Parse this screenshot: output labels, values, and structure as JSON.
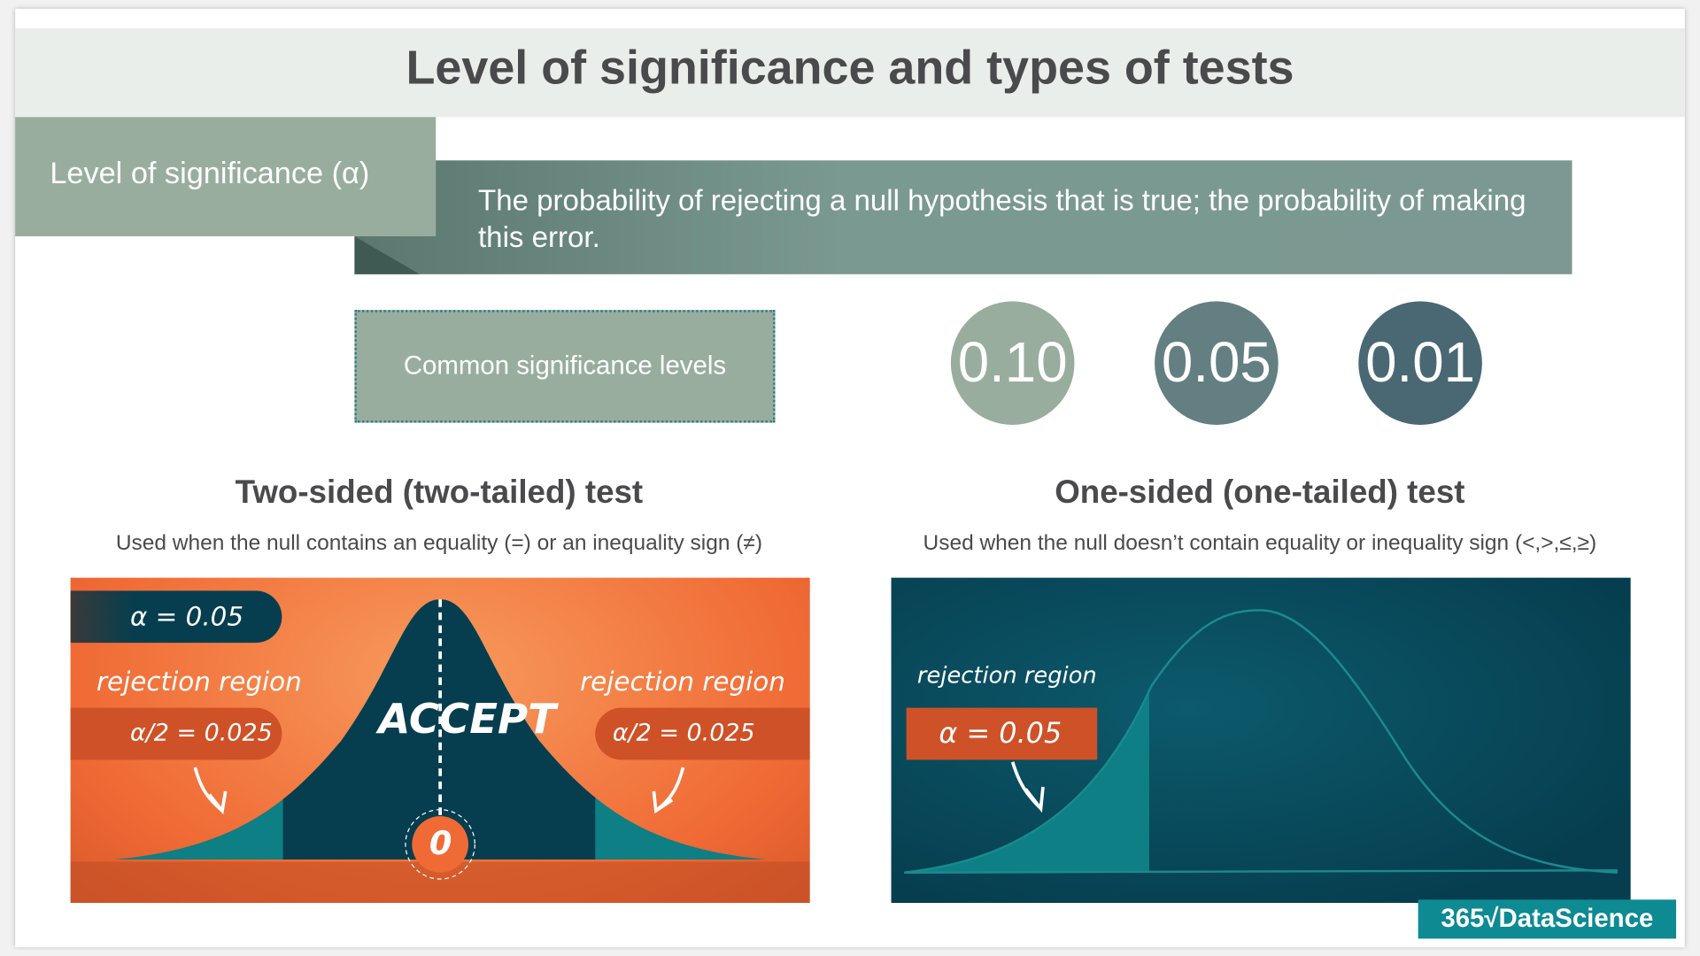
{
  "title": "Level of significance and types of tests",
  "definition": {
    "term": "Level of significance (α)",
    "text": "The probability of rejecting a null hypothesis that is true; the probability of making this error."
  },
  "common": {
    "label": "Common significance levels",
    "levels": [
      {
        "value": "0.10",
        "color": "#98ad9e"
      },
      {
        "value": "0.05",
        "color": "#637f81"
      },
      {
        "value": "0.01",
        "color": "#496873"
      }
    ]
  },
  "two_sided": {
    "heading": "Two-sided (two-tailed) test",
    "description": "Used when the null contains an equality (=) or an inequality sign (≠)",
    "alpha": "α = 0.05",
    "left_label": "rejection region",
    "left_alpha": "α/2 = 0.025",
    "right_label": "rejection region",
    "right_alpha": "α/2 = 0.025",
    "accept": "ACCEPT",
    "center": "0"
  },
  "one_sided": {
    "heading": "One-sided (one-tailed) test",
    "description": "Used when the null doesn’t contain equality or inequality sign (<,>,≤,≥)",
    "label": "rejection region",
    "alpha": "α = 0.05"
  },
  "logo": "365√DataScience",
  "colors": {
    "orange": "#f06a35",
    "dark_teal": "#063e4f",
    "teal": "#0e7f84"
  }
}
